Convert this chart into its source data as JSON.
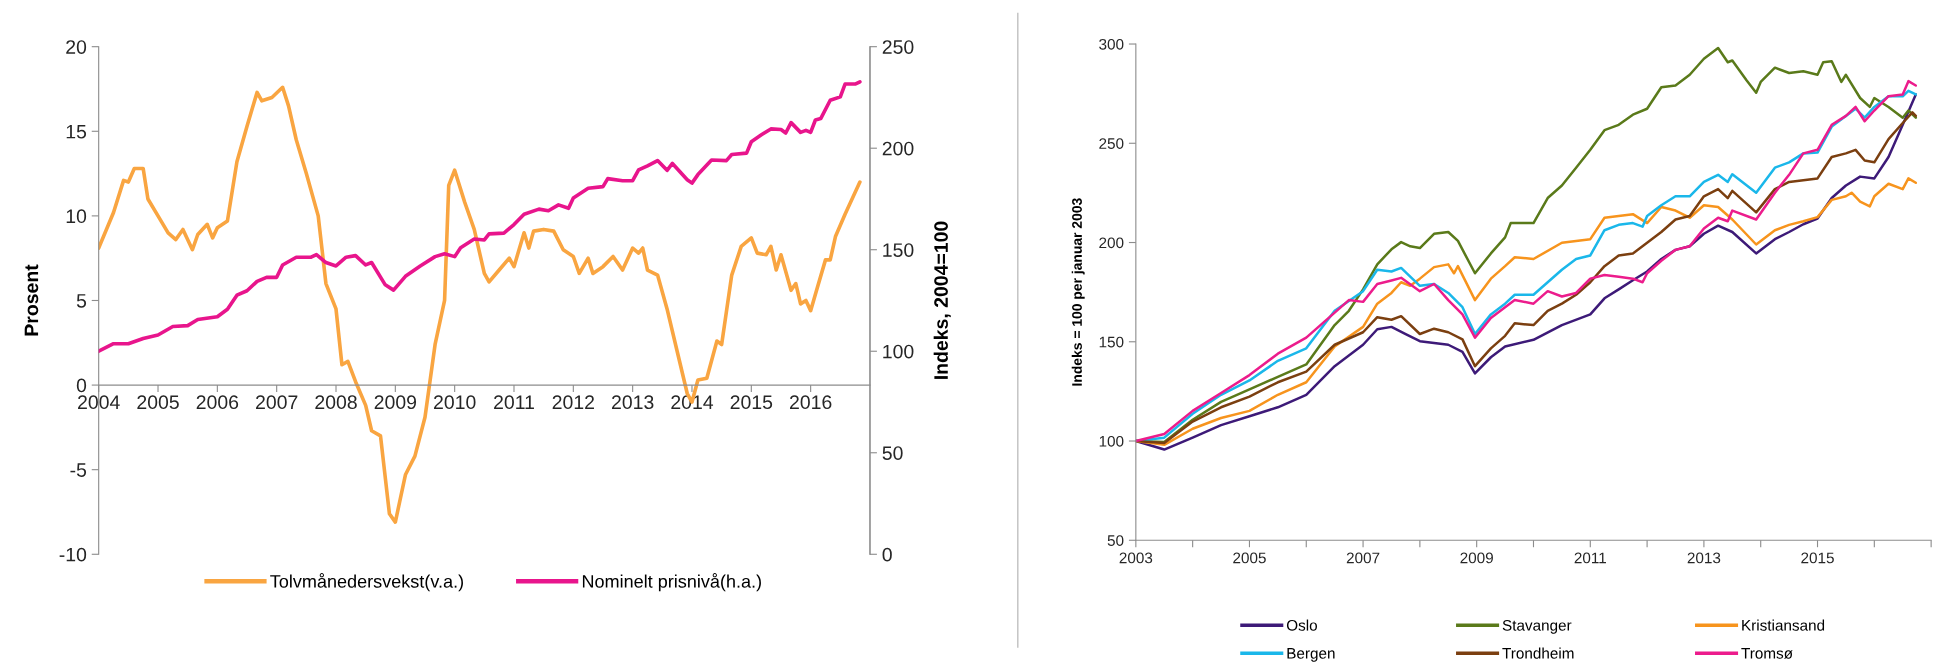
{
  "chart_data": [
    {
      "type": "line",
      "ylabel": "Prosent",
      "y2label": "Indeks, 2004=100",
      "xlim": [
        2004,
        2017
      ],
      "xticks": [
        2004,
        2005,
        2006,
        2007,
        2008,
        2009,
        2010,
        2011,
        2012,
        2013,
        2014,
        2015,
        2016
      ],
      "ylim": [
        -10,
        20
      ],
      "yticks": [
        -10,
        -5,
        0,
        5,
        10,
        15,
        20
      ],
      "y2lim": [
        0,
        250
      ],
      "y2ticks": [
        0,
        50,
        100,
        150,
        200,
        250
      ],
      "legend": "bottom",
      "grid": false,
      "series": [
        {
          "name": "Tolvmånedersvekst(v.a.)",
          "color": "#f9a541",
          "x": [
            2004.0,
            2004.25,
            2004.42,
            2004.5,
            2004.6,
            2004.75,
            2004.83,
            2005.0,
            2005.17,
            2005.3,
            2005.42,
            2005.58,
            2005.67,
            2005.83,
            2005.92,
            2006.0,
            2006.17,
            2006.33,
            2006.5,
            2006.67,
            2006.75,
            2006.92,
            2007.1,
            2007.2,
            2007.33,
            2007.5,
            2007.7,
            2007.83,
            2008.0,
            2008.1,
            2008.2,
            2008.33,
            2008.5,
            2008.6,
            2008.75,
            2008.9,
            2009.0,
            2009.17,
            2009.33,
            2009.5,
            2009.67,
            2009.83,
            2009.9,
            2010.0,
            2010.17,
            2010.33,
            2010.5,
            2010.58,
            2010.75,
            2010.92,
            2011.0,
            2011.17,
            2011.25,
            2011.33,
            2011.5,
            2011.67,
            2011.83,
            2012.0,
            2012.1,
            2012.25,
            2012.33,
            2012.5,
            2012.67,
            2012.83,
            2013.0,
            2013.1,
            2013.17,
            2013.25,
            2013.42,
            2013.58,
            2013.75,
            2013.92,
            2014.0,
            2014.1,
            2014.25,
            2014.42,
            2014.5,
            2014.67,
            2014.83,
            2015.0,
            2015.1,
            2015.25,
            2015.33,
            2015.42,
            2015.5,
            2015.67,
            2015.75,
            2015.83,
            2015.92,
            2016.0,
            2016.1,
            2016.25,
            2016.33,
            2016.42,
            2016.58,
            2016.83
          ],
          "values": [
            8.1,
            10.2,
            12.1,
            12.0,
            12.8,
            12.8,
            11.0,
            10.0,
            9.0,
            8.6,
            9.2,
            8.0,
            8.9,
            9.5,
            8.7,
            9.3,
            9.7,
            13.2,
            15.3,
            17.3,
            16.8,
            17.0,
            17.6,
            16.5,
            14.5,
            12.5,
            10.0,
            6.0,
            4.5,
            1.2,
            1.4,
            0.2,
            -1.2,
            -2.7,
            -3.0,
            -7.6,
            -8.1,
            -5.3,
            -4.2,
            -1.9,
            2.4,
            5.0,
            11.8,
            12.7,
            10.8,
            9.2,
            6.6,
            6.1,
            6.8,
            7.5,
            7.0,
            9.0,
            8.1,
            9.1,
            9.2,
            9.1,
            8.0,
            7.6,
            6.6,
            7.5,
            6.6,
            7.0,
            7.6,
            6.8,
            8.1,
            7.8,
            8.1,
            6.8,
            6.5,
            4.5,
            2.0,
            -0.5,
            -1.0,
            0.3,
            0.4,
            2.6,
            2.4,
            6.5,
            8.2,
            8.7,
            7.8,
            7.7,
            8.2,
            6.8,
            7.7,
            5.6,
            6.0,
            4.8,
            5.0,
            4.4,
            5.6,
            7.4,
            7.4,
            8.8,
            10.1,
            12.0
          ]
        },
        {
          "name": "Nominelt prisnivå(h.a.)",
          "color": "#e8158c",
          "axis": "y2",
          "x": [
            2004.0,
            2004.25,
            2004.5,
            2004.75,
            2005.0,
            2005.25,
            2005.5,
            2005.67,
            2006.0,
            2006.17,
            2006.33,
            2006.5,
            2006.67,
            2006.83,
            2007.0,
            2007.1,
            2007.33,
            2007.58,
            2007.67,
            2007.83,
            2008.0,
            2008.17,
            2008.33,
            2008.5,
            2008.6,
            2008.83,
            2008.97,
            2009.17,
            2009.42,
            2009.67,
            2009.83,
            2010.0,
            2010.1,
            2010.33,
            2010.5,
            2010.58,
            2010.83,
            2011.0,
            2011.17,
            2011.42,
            2011.58,
            2011.75,
            2011.92,
            2012.0,
            2012.25,
            2012.5,
            2012.58,
            2012.83,
            2013.0,
            2013.1,
            2013.25,
            2013.42,
            2013.58,
            2013.67,
            2013.92,
            2014.0,
            2014.1,
            2014.33,
            2014.58,
            2014.67,
            2014.92,
            2015.0,
            2015.17,
            2015.33,
            2015.5,
            2015.58,
            2015.67,
            2015.83,
            2015.92,
            2016.0,
            2016.08,
            2016.17,
            2016.33,
            2016.5,
            2016.58,
            2016.75,
            2016.83
          ],
          "values": [
            100.0,
            103.7,
            103.7,
            106.3,
            108.0,
            112.2,
            112.6,
            115.6,
            117.0,
            120.7,
            127.6,
            129.8,
            134.4,
            136.4,
            136.4,
            142.5,
            146.3,
            146.3,
            147.6,
            143.7,
            142.0,
            146.3,
            147.1,
            142.5,
            143.7,
            132.7,
            130.1,
            136.9,
            142.0,
            146.6,
            148.0,
            146.6,
            151.0,
            155.3,
            154.8,
            157.8,
            158.2,
            162.4,
            167.5,
            170.0,
            169.2,
            172.1,
            170.4,
            175.5,
            180.3,
            181.1,
            185.0,
            184.0,
            184.0,
            189.3,
            191.3,
            193.9,
            189.1,
            192.5,
            184.5,
            182.8,
            187.0,
            194.2,
            193.9,
            196.9,
            197.6,
            203.2,
            206.6,
            209.5,
            209.2,
            207.5,
            212.6,
            207.8,
            208.8,
            207.8,
            213.9,
            214.6,
            223.6,
            225.3,
            231.6,
            231.6,
            232.7
          ]
        }
      ]
    },
    {
      "type": "line",
      "ylabel": "Indeks = 100 per januar 2003",
      "xlim": [
        2003,
        2017
      ],
      "xticks": [
        2003,
        {
          "value": 2004,
          "label": null
        },
        2005,
        {
          "value": 2006,
          "label": null
        },
        2007,
        {
          "value": 2008,
          "label": null
        },
        2009,
        {
          "value": 2010,
          "label": null
        },
        2011,
        {
          "value": 2012,
          "label": null
        },
        2013,
        {
          "value": 2014,
          "label": null
        },
        2015,
        {
          "value": 2016,
          "label": null
        },
        {
          "value": 2017,
          "label": null
        }
      ],
      "ylim": [
        50,
        300
      ],
      "yticks": [
        50,
        100,
        150,
        200,
        250,
        300
      ],
      "legend": "bottom",
      "grid": false,
      "series": [
        {
          "name": "Oslo",
          "color": "#3d1a78",
          "x": [
            2003.0,
            2003.5,
            2004.0,
            2004.5,
            2005.0,
            2005.5,
            2006.0,
            2006.5,
            2007.0,
            2007.25,
            2007.5,
            2007.75,
            2008.0,
            2008.5,
            2008.75,
            2008.97,
            2009.25,
            2009.5,
            2010.0,
            2010.5,
            2011.0,
            2011.25,
            2011.5,
            2011.75,
            2012.0,
            2012.25,
            2012.5,
            2012.75,
            2013.0,
            2013.25,
            2013.5,
            2013.92,
            2014.25,
            2014.5,
            2014.75,
            2015.0,
            2015.25,
            2015.5,
            2015.75,
            2016.0,
            2016.25,
            2016.5,
            2016.73
          ],
          "values": [
            100,
            95.7,
            101.7,
            108.0,
            112.5,
            117.0,
            123.3,
            137.7,
            148.5,
            156.3,
            157.5,
            153.9,
            150.3,
            148.5,
            144.9,
            134.1,
            142.2,
            147.6,
            151.0,
            158.4,
            163.8,
            171.9,
            176.4,
            181.0,
            185.4,
            191.7,
            196.3,
            198.1,
            204.4,
            208.5,
            205.3,
            194.5,
            201.7,
            205.3,
            209.2,
            212.1,
            222.4,
            228.7,
            233.2,
            232.3,
            243.1,
            259.3,
            274.6
          ]
        },
        {
          "name": "Stavanger",
          "color": "#5a7a1a",
          "x": [
            2003.0,
            2003.5,
            2004.0,
            2004.5,
            2005.0,
            2005.5,
            2006.0,
            2006.5,
            2006.75,
            2007.0,
            2007.25,
            2007.5,
            2007.67,
            2007.83,
            2008.0,
            2008.25,
            2008.5,
            2008.67,
            2008.97,
            2009.25,
            2009.5,
            2009.6,
            2010.0,
            2010.25,
            2010.5,
            2010.75,
            2011.0,
            2011.25,
            2011.5,
            2011.75,
            2012.0,
            2012.25,
            2012.5,
            2012.75,
            2013.0,
            2013.25,
            2013.42,
            2013.5,
            2013.75,
            2013.92,
            2014.0,
            2014.25,
            2014.5,
            2014.75,
            2015.0,
            2015.1,
            2015.25,
            2015.42,
            2015.5,
            2015.75,
            2015.92,
            2016.0,
            2016.25,
            2016.5,
            2016.6,
            2016.73
          ],
          "values": [
            100,
            99.5,
            110.7,
            119.7,
            126.0,
            132.3,
            138.6,
            158.4,
            165.6,
            176.4,
            189.0,
            196.6,
            200.2,
            198.1,
            197.2,
            204.4,
            205.3,
            200.8,
            184.5,
            194.5,
            202.6,
            209.8,
            209.8,
            222.4,
            228.7,
            237.7,
            246.7,
            256.6,
            259.3,
            264.4,
            267.4,
            278.2,
            279.1,
            284.5,
            292.6,
            298.0,
            290.8,
            291.7,
            281.8,
            275.5,
            280.9,
            288.1,
            285.4,
            286.3,
            284.5,
            290.8,
            291.3,
            280.9,
            284.5,
            272.8,
            268.3,
            272.8,
            268.3,
            262.9,
            266.5,
            262.9
          ]
        },
        {
          "name": "Kristiansand",
          "color": "#f7941d",
          "x": [
            2003.0,
            2003.5,
            2004.0,
            2004.5,
            2005.0,
            2005.5,
            2006.0,
            2006.5,
            2007.0,
            2007.25,
            2007.5,
            2007.67,
            2007.83,
            2008.0,
            2008.25,
            2008.5,
            2008.6,
            2008.67,
            2008.97,
            2009.25,
            2009.5,
            2009.67,
            2010.0,
            2010.5,
            2011.0,
            2011.25,
            2011.5,
            2011.75,
            2012.0,
            2012.25,
            2012.5,
            2012.75,
            2013.0,
            2013.25,
            2013.5,
            2013.92,
            2014.25,
            2014.5,
            2014.75,
            2015.0,
            2015.25,
            2015.5,
            2015.6,
            2015.75,
            2015.92,
            2016.0,
            2016.25,
            2016.5,
            2016.6,
            2016.73
          ],
          "values": [
            100,
            98.1,
            106.2,
            111.6,
            115.2,
            123.3,
            129.6,
            147.6,
            157.5,
            169.2,
            174.6,
            180.0,
            178.2,
            181.8,
            187.6,
            189.0,
            184.5,
            188.1,
            171.0,
            181.8,
            188.1,
            192.6,
            191.7,
            199.9,
            201.7,
            212.5,
            213.4,
            214.3,
            209.8,
            217.9,
            216.1,
            212.5,
            218.8,
            217.9,
            211.6,
            199.0,
            206.2,
            208.9,
            210.7,
            212.8,
            221.5,
            223.3,
            225.1,
            220.6,
            218.2,
            223.3,
            229.6,
            226.9,
            232.3,
            230.1
          ]
        },
        {
          "name": "Bergen",
          "color": "#1ab7ea",
          "x": [
            2003.0,
            2003.5,
            2004.0,
            2004.5,
            2005.0,
            2005.5,
            2006.0,
            2006.5,
            2007.0,
            2007.25,
            2007.5,
            2007.67,
            2008.0,
            2008.25,
            2008.5,
            2008.75,
            2008.97,
            2009.25,
            2009.5,
            2009.67,
            2010.0,
            2010.25,
            2010.5,
            2010.75,
            2011.0,
            2011.25,
            2011.5,
            2011.75,
            2011.92,
            2012.0,
            2012.25,
            2012.5,
            2012.75,
            2013.0,
            2013.25,
            2013.42,
            2013.5,
            2013.92,
            2014.25,
            2014.5,
            2014.75,
            2015.0,
            2015.25,
            2015.5,
            2015.67,
            2015.83,
            2016.0,
            2016.25,
            2016.5,
            2016.6,
            2016.73
          ],
          "values": [
            100,
            101.7,
            113.7,
            123.3,
            130.5,
            140.4,
            146.7,
            165.6,
            175.5,
            186.3,
            185.4,
            187.2,
            178.2,
            179.1,
            174.6,
            167.4,
            153.9,
            163.8,
            169.2,
            173.7,
            173.7,
            180.0,
            186.3,
            191.7,
            193.5,
            206.2,
            208.9,
            209.8,
            208.0,
            213.4,
            218.8,
            223.3,
            223.3,
            230.5,
            234.1,
            230.5,
            234.4,
            225.1,
            237.7,
            240.4,
            244.9,
            245.3,
            258.4,
            263.8,
            267.4,
            262.9,
            268.3,
            273.7,
            273.7,
            276.4,
            274.6
          ]
        },
        {
          "name": "Trondheim",
          "color": "#7b3f10",
          "x": [
            2003.0,
            2003.5,
            2004.0,
            2004.5,
            2005.0,
            2005.5,
            2006.0,
            2006.5,
            2007.0,
            2007.25,
            2007.5,
            2007.67,
            2008.0,
            2008.25,
            2008.5,
            2008.75,
            2008.97,
            2009.25,
            2009.5,
            2009.67,
            2010.0,
            2010.25,
            2010.5,
            2010.75,
            2011.0,
            2011.25,
            2011.5,
            2011.75,
            2012.0,
            2012.25,
            2012.5,
            2012.75,
            2013.0,
            2013.25,
            2013.42,
            2013.5,
            2013.92,
            2014.25,
            2014.5,
            2014.75,
            2015.0,
            2015.25,
            2015.5,
            2015.67,
            2015.83,
            2016.0,
            2016.25,
            2016.5,
            2016.67,
            2016.73
          ],
          "values": [
            100,
            99.0,
            109.8,
            117.0,
            122.4,
            129.6,
            135.0,
            148.5,
            154.8,
            162.4,
            161.1,
            162.9,
            153.9,
            156.6,
            154.8,
            151.2,
            137.7,
            146.7,
            153.0,
            159.3,
            158.4,
            165.6,
            169.2,
            173.7,
            180.0,
            188.1,
            193.5,
            194.5,
            199.9,
            205.3,
            211.6,
            213.4,
            223.3,
            226.9,
            222.4,
            226.0,
            215.2,
            226.9,
            230.5,
            231.4,
            232.3,
            243.1,
            244.9,
            246.7,
            241.3,
            240.4,
            252.1,
            260.2,
            265.6,
            263.8
          ]
        },
        {
          "name": "Tromsø",
          "color": "#ec1c8c",
          "x": [
            2003.0,
            2003.5,
            2004.0,
            2004.5,
            2005.0,
            2005.5,
            2006.0,
            2006.5,
            2006.75,
            2007.0,
            2007.25,
            2007.5,
            2007.67,
            2008.0,
            2008.25,
            2008.5,
            2008.75,
            2008.97,
            2009.25,
            2009.5,
            2009.67,
            2010.0,
            2010.25,
            2010.5,
            2010.75,
            2011.0,
            2011.25,
            2011.5,
            2011.75,
            2011.92,
            2012.0,
            2012.25,
            2012.5,
            2012.75,
            2013.0,
            2013.25,
            2013.42,
            2013.5,
            2013.92,
            2014.25,
            2014.5,
            2014.75,
            2015.0,
            2015.25,
            2015.5,
            2015.67,
            2015.83,
            2016.0,
            2016.25,
            2016.5,
            2016.6,
            2016.73
          ],
          "values": [
            100,
            103.5,
            115.2,
            124.2,
            133.2,
            144.0,
            152.1,
            164.7,
            171.0,
            170.1,
            179.1,
            180.9,
            182.2,
            175.5,
            179.1,
            171.0,
            163.8,
            152.1,
            162.0,
            167.4,
            171.0,
            169.2,
            175.5,
            172.8,
            174.6,
            181.8,
            183.6,
            182.7,
            181.8,
            180.0,
            184.5,
            190.8,
            196.3,
            198.1,
            207.1,
            212.5,
            210.7,
            216.1,
            211.6,
            225.1,
            234.1,
            244.9,
            246.7,
            259.3,
            263.8,
            268.3,
            261.1,
            266.5,
            273.7,
            274.6,
            281.3,
            279.1
          ]
        }
      ]
    }
  ]
}
